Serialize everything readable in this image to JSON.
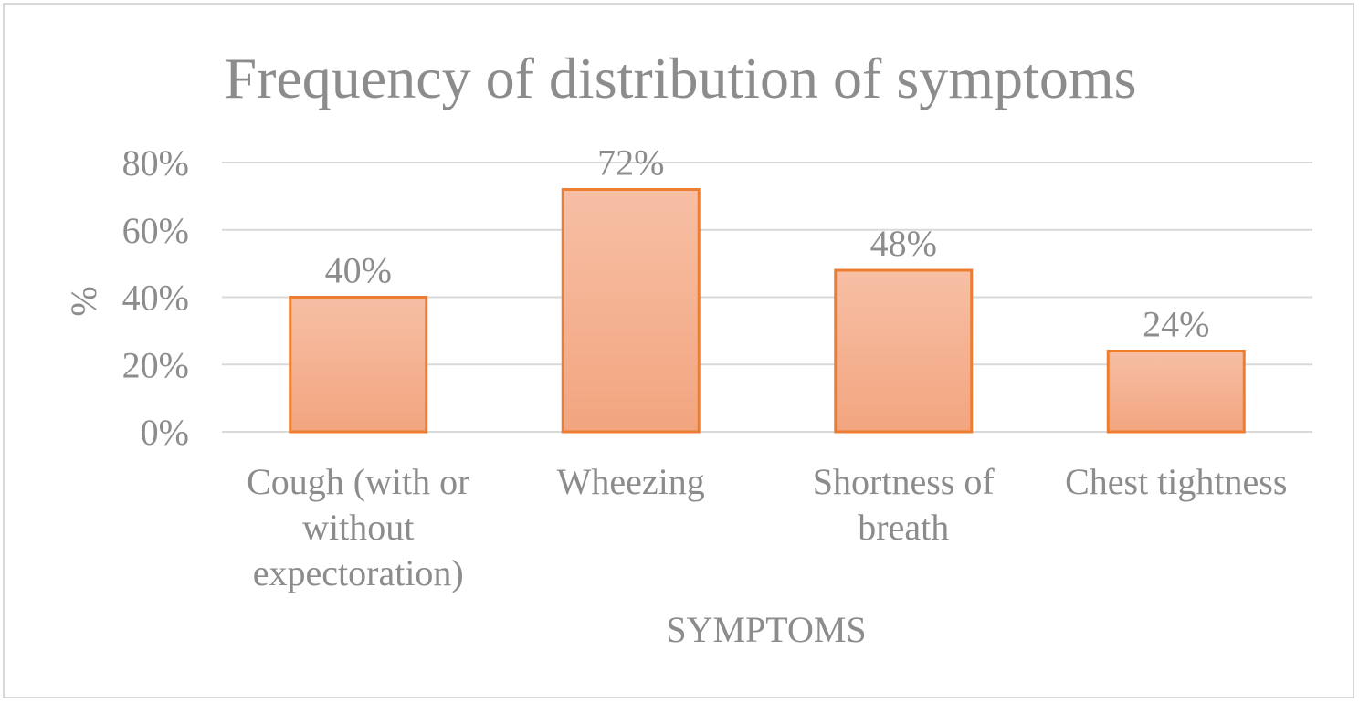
{
  "chart_data": {
    "type": "bar",
    "title": "Frequency of distribution of symptoms",
    "xlabel": "SYMPTOMS",
    "ylabel": "%",
    "categories": [
      [
        "Cough (with or",
        "without",
        "expectoration)"
      ],
      [
        "Wheezing"
      ],
      [
        "Shortness of",
        "breath"
      ],
      [
        "Chest tightness"
      ]
    ],
    "values": [
      40,
      72,
      48,
      24
    ],
    "data_labels": [
      "40%",
      "72%",
      "48%",
      "24%"
    ],
    "y_ticks": [
      "0%",
      "20%",
      "40%",
      "60%",
      "80%"
    ],
    "y_tick_values": [
      0,
      20,
      40,
      60,
      80
    ],
    "ylim": [
      0,
      80
    ],
    "grid": true,
    "legend": "none",
    "colors": {
      "bar_fill_top": "#f7bfa5",
      "bar_fill_bottom": "#f2a57f",
      "bar_stroke": "#ed7d31",
      "gridline": "#d9d9d9",
      "text": "#8c8c8c"
    }
  }
}
